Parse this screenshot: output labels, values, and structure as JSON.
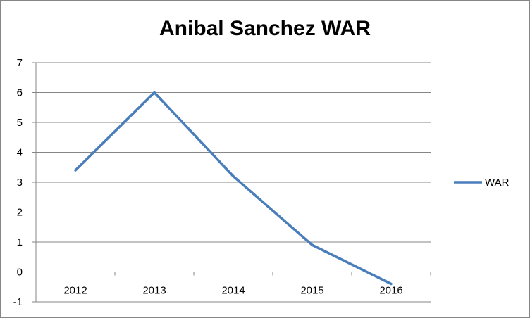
{
  "chart_data": {
    "type": "line",
    "title": "Anibal Sanchez WAR",
    "xlabel": "",
    "ylabel": "",
    "categories": [
      "2012",
      "2013",
      "2014",
      "2015",
      "2016"
    ],
    "series": [
      {
        "name": "WAR",
        "values": [
          3.4,
          6.0,
          3.2,
          0.9,
          -0.4
        ],
        "color": "#4a7ebb"
      }
    ],
    "ylim": [
      -1,
      7
    ],
    "yticks": [
      -1,
      0,
      1,
      2,
      3,
      4,
      5,
      6,
      7
    ],
    "grid": true,
    "legend": "right"
  }
}
